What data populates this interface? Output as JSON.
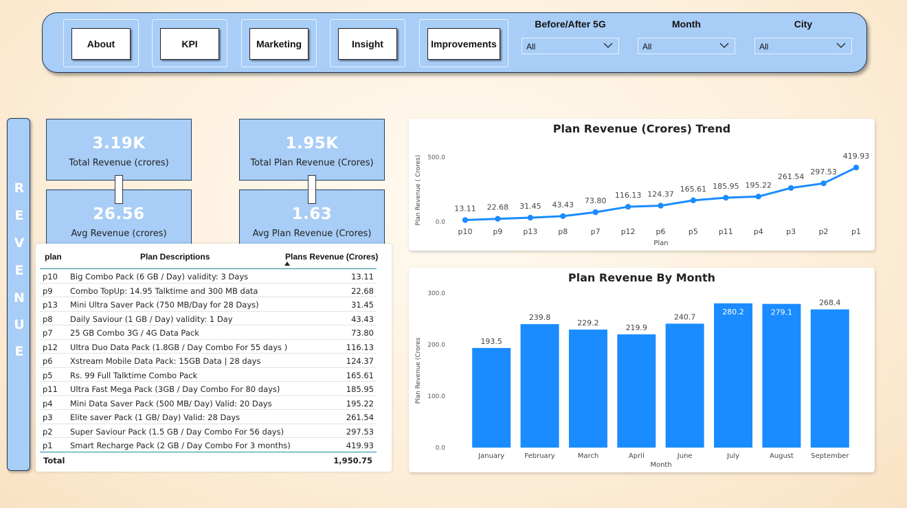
{
  "nav": {
    "buttons": [
      "About",
      "KPI",
      "Marketing",
      "Insight",
      "Improvements"
    ],
    "slicers": [
      {
        "title": "Before/After 5G",
        "value": "All"
      },
      {
        "title": "Month",
        "value": "All"
      },
      {
        "title": "City",
        "value": "All"
      }
    ]
  },
  "side_panel": {
    "letters": [
      "R",
      "E",
      "V",
      "E",
      "N",
      "U",
      "E"
    ]
  },
  "kpis": {
    "total_revenue": {
      "value": "3.19K",
      "label": "Total Revenue (crores)"
    },
    "total_plan_revenue": {
      "value": "1.95K",
      "label": "Total Plan Revenue (Crores)"
    },
    "avg_revenue": {
      "value": "26.56",
      "label": "Avg Revenue (crores)"
    },
    "avg_plan_revenue": {
      "value": "1.63",
      "label": "Avg Plan Revenue (Crores)"
    }
  },
  "table": {
    "headers": {
      "plan": "plan",
      "desc": "Plan Descriptions",
      "rev": "Plans Revenue (Crores)"
    },
    "rows": [
      {
        "plan": "p10",
        "desc": "Big Combo Pack (6 GB / Day) validity: 3 Days",
        "rev": "13.11"
      },
      {
        "plan": "p9",
        "desc": "Combo TopUp: 14.95 Talktime and 300 MB data",
        "rev": "22.68"
      },
      {
        "plan": "p13",
        "desc": "Mini Ultra Saver Pack (750 MB/Day for 28 Days)",
        "rev": "31.45"
      },
      {
        "plan": "p8",
        "desc": "Daily Saviour (1 GB / Day) validity: 1 Day",
        "rev": "43.43"
      },
      {
        "plan": "p7",
        "desc": "25 GB Combo 3G / 4G Data Pack",
        "rev": "73.80"
      },
      {
        "plan": "p12",
        "desc": "Ultra Duo Data Pack (1.8GB / Day Combo For 55 days )",
        "rev": "116.13"
      },
      {
        "plan": "p6",
        "desc": "Xstream Mobile Data Pack: 15GB Data | 28 days",
        "rev": "124.37"
      },
      {
        "plan": "p5",
        "desc": "Rs. 99 Full Talktime Combo Pack",
        "rev": "165.61"
      },
      {
        "plan": "p11",
        "desc": "Ultra Fast Mega Pack (3GB / Day Combo For 80 days)",
        "rev": "185.95"
      },
      {
        "plan": "p4",
        "desc": "Mini Data Saver Pack (500 MB/ Day) Valid: 20 Days",
        "rev": "195.22"
      },
      {
        "plan": "p3",
        "desc": "Elite saver Pack (1 GB/ Day) Valid: 28 Days",
        "rev": "261.54"
      },
      {
        "plan": "p2",
        "desc": "Super Saviour Pack (1.5 GB / Day Combo For 56 days)",
        "rev": "297.53"
      },
      {
        "plan": "p1",
        "desc": "Smart Recharge Pack (2 GB / Day Combo For 3 months)",
        "rev": "419.93"
      }
    ],
    "total": {
      "label": "Total",
      "value": "1,950.75"
    }
  },
  "chart_data": [
    {
      "type": "line",
      "title": "Plan Revenue (Crores) Trend",
      "xlabel": "Plan",
      "ylabel": "Plan Revenue ( Crores)",
      "categories": [
        "p10",
        "p9",
        "p13",
        "p8",
        "p7",
        "p12",
        "p6",
        "p5",
        "p11",
        "p4",
        "p3",
        "p2",
        "p1"
      ],
      "values": [
        13.11,
        22.68,
        31.45,
        43.43,
        73.8,
        116.13,
        124.37,
        165.61,
        185.95,
        195.22,
        261.54,
        297.53,
        419.93
      ],
      "value_labels": [
        "13.11",
        "22.68",
        "31.45",
        "43.43",
        "73.80",
        "116.13",
        "124.37",
        "165.61",
        "185.95",
        "195.22",
        "261.54",
        "297.53",
        "419.93"
      ],
      "yticks": [
        "0.0",
        "500.0"
      ],
      "ylim": [
        0,
        500
      ],
      "color": "#1a8cff"
    },
    {
      "type": "bar",
      "title": "Plan Revenue By Month",
      "xlabel": "Month",
      "ylabel": "Plan Revenue (Crores",
      "categories": [
        "January",
        "February",
        "March",
        "April",
        "June",
        "July",
        "August",
        "September"
      ],
      "values": [
        193.5,
        239.8,
        229.2,
        219.9,
        240.7,
        280.2,
        279.1,
        268.4
      ],
      "value_labels": [
        "193.5",
        "239.8",
        "229.2",
        "219.9",
        "240.7",
        "280.2",
        "279.1",
        "268.4"
      ],
      "yticks": [
        "0.0",
        "100.0",
        "200.0",
        "300.0"
      ],
      "ylim": [
        0,
        300
      ],
      "color": "#1a8cff"
    }
  ]
}
